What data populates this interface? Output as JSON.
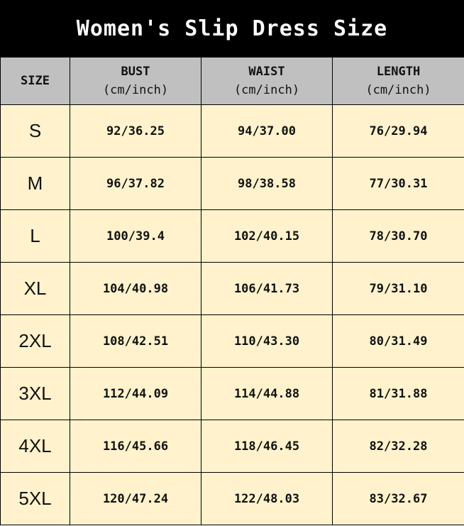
{
  "title": "Women's Slip Dress Size",
  "headers": [
    {
      "label": "SIZE",
      "unit": ""
    },
    {
      "label": "BUST",
      "unit": "(cm/inch)"
    },
    {
      "label": "WAIST",
      "unit": "(cm/inch)"
    },
    {
      "label": "LENGTH",
      "unit": "(cm/inch)"
    }
  ],
  "rows": [
    [
      "S",
      "92/36.25",
      "94/37.00",
      "76/29.94"
    ],
    [
      "M",
      "96/37.82",
      "98/38.58",
      "77/30.31"
    ],
    [
      "L",
      "100/39.4",
      "102/40.15",
      "78/30.70"
    ],
    [
      "XL",
      "104/40.98",
      "106/41.73",
      "79/31.10"
    ],
    [
      "2XL",
      "108/42.51",
      "110/43.30",
      "80/31.49"
    ],
    [
      "3XL",
      "112/44.09",
      "114/44.88",
      "81/31.88"
    ],
    [
      "4XL",
      "116/45.66",
      "118/46.45",
      "82/32.28"
    ],
    [
      "5XL",
      "120/47.24",
      "122/48.03",
      "83/32.67"
    ]
  ],
  "colors": {
    "title_bg": "#000000",
    "header_bg": "#c0c0c0",
    "cell_bg": "#fff2cc"
  }
}
